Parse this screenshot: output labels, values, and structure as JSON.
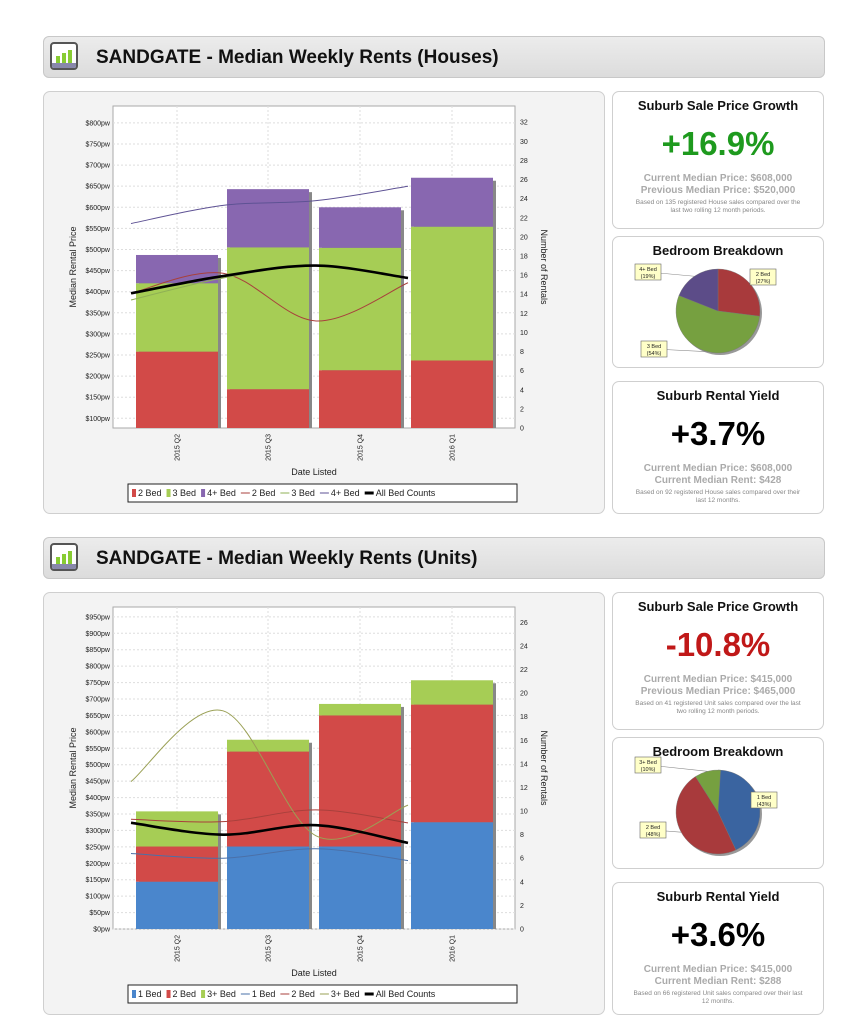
{
  "sections": [
    {
      "title": "SANDGATE - Median Weekly Rents (Houses)",
      "chart_data": {
        "type": "bar",
        "xlabel": "Date Listed",
        "ylabel": "Median Rental Price",
        "y2label": "Number of Rentals",
        "categories": [
          "2015 Q2",
          "2015 Q3",
          "2015 Q4",
          "2016 Q1"
        ],
        "ylim": [
          77,
          840
        ],
        "yticks": [
          100,
          150,
          200,
          250,
          300,
          350,
          400,
          450,
          500,
          550,
          600,
          650,
          700,
          750,
          800
        ],
        "ytick_suffix": "pw",
        "y2lim": [
          0,
          33.7
        ],
        "y2ticks": [
          0,
          2,
          4,
          6,
          8,
          10,
          12,
          14,
          16,
          18,
          20,
          22,
          24,
          26,
          28,
          30,
          32
        ],
        "grid": true,
        "legend": "bottom",
        "bar_series": [
          {
            "name": "2 Bed",
            "color": "#d24a48",
            "values": [
              258,
              169,
              214,
              237
            ]
          },
          {
            "name": "3 Bed",
            "color": "#a6cd55",
            "values": [
              162,
              336,
              290,
              317
            ]
          },
          {
            "name": "4+ Bed",
            "color": "#8867b0",
            "values": [
              67,
              138,
              96,
              116
            ]
          }
        ],
        "line_series": [
          {
            "name": "2 Bed",
            "color": "#a8403c",
            "values": [
              14.1,
              16.2,
              11.2,
              15.2
            ]
          },
          {
            "name": "3 Bed",
            "color": "#8fb055",
            "values": [
              13.4,
              15.7,
              17,
              15.7
            ]
          },
          {
            "name": "4+ Bed",
            "color": "#5e5294",
            "values": [
              21.4,
              23.3,
              23.8,
              25.3
            ]
          },
          {
            "name": "All Bed Counts",
            "color": "#000000",
            "values": [
              14.1,
              15.9,
              17,
              15.7
            ],
            "bold": true
          }
        ]
      },
      "growth": {
        "title": "Suburb Sale Price Growth",
        "value": "+16.9%",
        "color": "#1e9a1e",
        "current": "Current Median Price: $608,000",
        "previous": "Previous Median Price: $520,000",
        "note": "Based on 135 registered House sales compared over the last two rolling 12 month periods."
      },
      "breakdown": {
        "title": "Bedroom Breakdown",
        "slices": [
          {
            "label": "2 Bed",
            "pct": 27,
            "color": "#a83a3c",
            "text": "2 Bed (27%)"
          },
          {
            "label": "3 Bed",
            "pct": 54,
            "color": "#76a040",
            "text": "3 Bed (54%)"
          },
          {
            "label": "4+ Bed",
            "pct": 19,
            "color": "#5c4c88",
            "text": "4+ Bed (19%)"
          }
        ]
      },
      "yield": {
        "title": "Suburb Rental Yield",
        "value": "+3.7%",
        "current": "Current Median Price: $608,000",
        "rent": "Current Median Rent: $428",
        "note": "Based on 92 registered House sales compared over their last 12 months."
      }
    },
    {
      "title": "SANDGATE - Median Weekly Rents (Units)",
      "chart_data": {
        "type": "bar",
        "xlabel": "Date Listed",
        "ylabel": "Median Rental Price",
        "y2label": "Number of Rentals",
        "categories": [
          "2015 Q2",
          "2015 Q3",
          "2015 Q4",
          "2016 Q1"
        ],
        "ylim": [
          0,
          980
        ],
        "yticks": [
          0,
          50,
          100,
          150,
          200,
          250,
          300,
          350,
          400,
          450,
          500,
          550,
          600,
          650,
          700,
          750,
          800,
          850,
          900,
          950
        ],
        "ytick_suffix": "pw",
        "y2lim": [
          0,
          27.3
        ],
        "y2ticks": [
          0,
          2,
          4,
          6,
          8,
          10,
          12,
          14,
          16,
          18,
          20,
          22,
          24,
          26
        ],
        "grid": true,
        "legend": "bottom",
        "bar_series": [
          {
            "name": "1 Bed",
            "color": "#4a86cc",
            "values": [
              144,
              251,
              251,
              325
            ]
          },
          {
            "name": "2 Bed",
            "color": "#d24a48",
            "values": [
              107,
              289,
              399,
              358
            ]
          },
          {
            "name": "3+ Bed",
            "color": "#a6cd55",
            "values": [
              107,
              36,
              35,
              74
            ]
          }
        ],
        "line_series": [
          {
            "name": "1 Bed",
            "color": "#4a70a8",
            "values": [
              6.4,
              6,
              6.8,
              5.8
            ]
          },
          {
            "name": "2 Bed",
            "color": "#a8403c",
            "values": [
              9.3,
              9.1,
              10.1,
              9
            ]
          },
          {
            "name": "3+ Bed",
            "color": "#9aa055",
            "values": [
              12.5,
              18.5,
              7.9,
              10.5
            ]
          },
          {
            "name": "All Bed Counts",
            "color": "#000000",
            "values": [
              9,
              8,
              8.8,
              7.3
            ],
            "bold": true
          }
        ]
      },
      "growth": {
        "title": "Suburb Sale Price Growth",
        "value": "-10.8%",
        "color": "#c01818",
        "current": "Current Median Price: $415,000",
        "previous": "Previous Median Price: $465,000",
        "note": "Based on 41 registered Unit sales compared over the last two rolling 12 month periods."
      },
      "breakdown": {
        "title": "Bedroom Breakdown",
        "slices": [
          {
            "label": "1 Bed",
            "pct": 43,
            "color": "#3a64a0",
            "text": "1 Bed (43%)"
          },
          {
            "label": "2 Bed",
            "pct": 48,
            "color": "#a83a3c",
            "text": "2 Bed (48%)"
          },
          {
            "label": "3+ Bed",
            "pct": 10,
            "color": "#76a040",
            "text": "3+ Bed (10%)"
          }
        ]
      },
      "yield": {
        "title": "Suburb Rental Yield",
        "value": "+3.6%",
        "current": "Current Median Price: $415,000",
        "rent": "Current Median Rent: $288",
        "note": "Based on 66 registered Unit sales compared over their last 12 months."
      }
    }
  ]
}
